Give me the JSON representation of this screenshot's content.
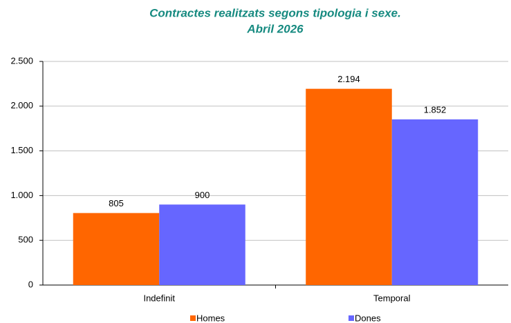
{
  "chart_data": {
    "type": "bar",
    "title": "Contractes realitzats segons tipologia i sexe.",
    "subtitle": "Abril 2026",
    "categories": [
      "Indefinit",
      "Temporal"
    ],
    "series": [
      {
        "name": "Homes",
        "color": "#ff6600",
        "values": [
          805,
          2194
        ],
        "value_labels": [
          "805",
          "2.194"
        ]
      },
      {
        "name": "Dones",
        "color": "#6666ff",
        "values": [
          900,
          1852
        ],
        "value_labels": [
          "900",
          "1.852"
        ]
      }
    ],
    "ylim": [
      0,
      2500
    ],
    "yticks": [
      0,
      500,
      {
        "value": 1000,
        "label": "1.000"
      },
      {
        "value": 1500,
        "label": "1.500"
      },
      {
        "value": 2000,
        "label": "2.000"
      },
      {
        "value": 2500,
        "label": "2.500"
      }
    ],
    "grid": true,
    "legend": "bottom"
  }
}
